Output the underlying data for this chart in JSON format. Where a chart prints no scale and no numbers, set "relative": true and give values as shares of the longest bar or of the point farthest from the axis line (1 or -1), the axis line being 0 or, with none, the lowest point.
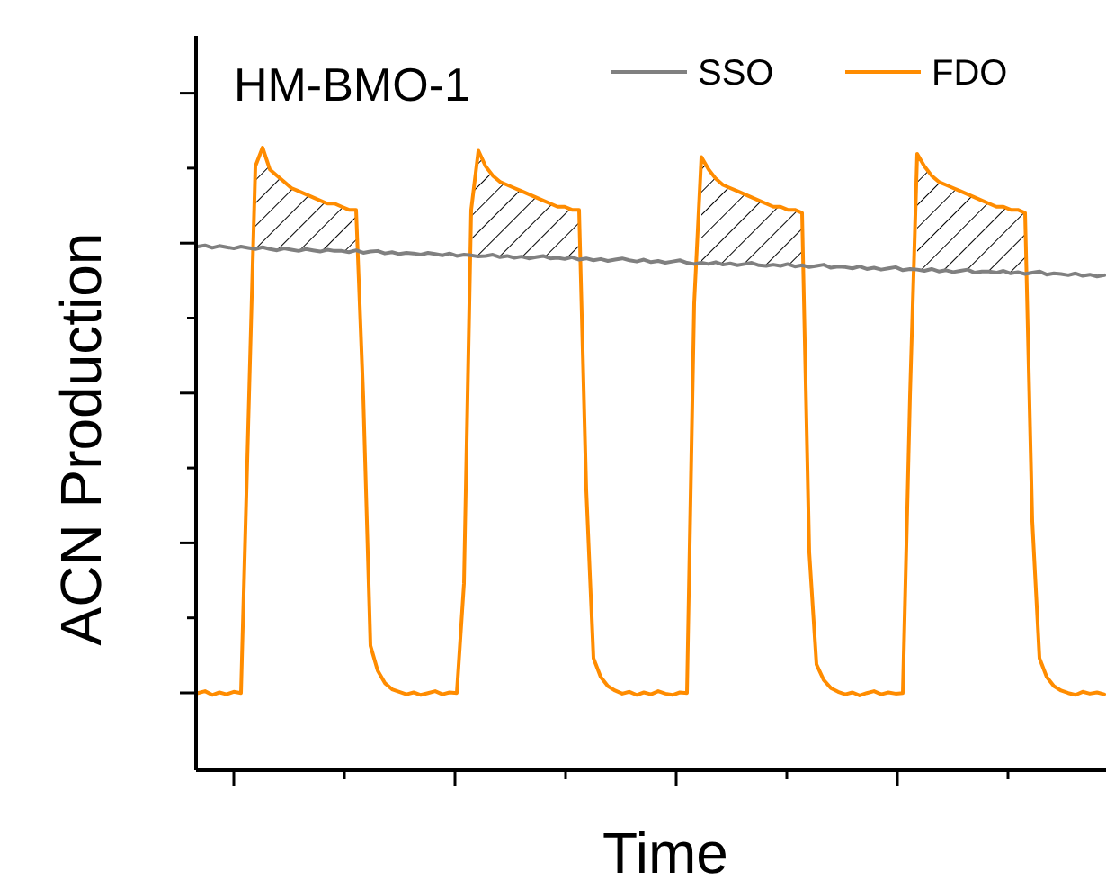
{
  "chart_data": {
    "type": "line",
    "title": "HM-BMO-1",
    "xlabel": "Time",
    "ylabel": "ACN Production",
    "relative": true,
    "legend": "top right",
    "categories": [
      null,
      null,
      null,
      null,
      null,
      null,
      null,
      null,
      null,
      null,
      null,
      null,
      null,
      null,
      null,
      null,
      null,
      null,
      null,
      null,
      null,
      null,
      null,
      null,
      null,
      null,
      null,
      null,
      null,
      null,
      null,
      null,
      null,
      null,
      null,
      null,
      null,
      null,
      null,
      null,
      null,
      null,
      null,
      null,
      null,
      null,
      null,
      null,
      null,
      null,
      null,
      null,
      null,
      null,
      null,
      null,
      null,
      null,
      null,
      null,
      null,
      null,
      null,
      null,
      null,
      null,
      null,
      null,
      null,
      null,
      null,
      null,
      null,
      null,
      null,
      null,
      null,
      null,
      null,
      null,
      null,
      null,
      null,
      null,
      null,
      null,
      null,
      null,
      null,
      null,
      null,
      null,
      null,
      null,
      null,
      null,
      null,
      null,
      null,
      null,
      null,
      null,
      null,
      null,
      null,
      null,
      null,
      null,
      null,
      null,
      null,
      null,
      null,
      null,
      null,
      null,
      null,
      null,
      null,
      null,
      null,
      null,
      null,
      null,
      null,
      null,
      null
    ],
    "series": [
      {
        "name": "SSO",
        "color": "#808080",
        "values": [
          0.841,
          0.843,
          0.839,
          0.842,
          0.84,
          0.838,
          0.841,
          0.839,
          0.837,
          0.84,
          0.837,
          0.835,
          0.838,
          0.836,
          0.834,
          0.837,
          0.835,
          0.833,
          0.836,
          0.834,
          0.834,
          0.832,
          0.835,
          0.831,
          0.833,
          0.834,
          0.83,
          0.832,
          0.829,
          0.831,
          0.83,
          0.828,
          0.831,
          0.829,
          0.827,
          0.83,
          0.826,
          0.828,
          0.827,
          0.825,
          0.826,
          0.828,
          0.824,
          0.826,
          0.823,
          0.825,
          0.822,
          0.824,
          0.826,
          0.822,
          0.823,
          0.821,
          0.824,
          0.82,
          0.822,
          0.819,
          0.821,
          0.818,
          0.82,
          0.822,
          0.819,
          0.817,
          0.82,
          0.816,
          0.818,
          0.815,
          0.817,
          0.819,
          0.815,
          0.813,
          0.815,
          0.813,
          0.816,
          0.812,
          0.814,
          0.811,
          0.813,
          0.815,
          0.811,
          0.81,
          0.812,
          0.81,
          0.813,
          0.809,
          0.811,
          0.808,
          0.81,
          0.812,
          0.807,
          0.809,
          0.808,
          0.806,
          0.809,
          0.805,
          0.807,
          0.804,
          0.806,
          0.808,
          0.803,
          0.805,
          0.804,
          0.802,
          0.805,
          0.801,
          0.803,
          0.8,
          0.802,
          0.804,
          0.799,
          0.801,
          0.801,
          0.799,
          0.802,
          0.798,
          0.8,
          0.797,
          0.799,
          0.801,
          0.796,
          0.798,
          0.797,
          0.795,
          0.798,
          0.794,
          0.796,
          0.793,
          0.795
        ]
      },
      {
        "name": "FDO",
        "color": "#ff8c00",
        "values": [
          0.124,
          0.127,
          0.121,
          0.125,
          0.122,
          0.126,
          0.124,
          0.55,
          0.97,
          1.0,
          0.965,
          0.955,
          0.945,
          0.935,
          0.93,
          0.925,
          0.92,
          0.915,
          0.91,
          0.91,
          0.905,
          0.9,
          0.9,
          0.6,
          0.2,
          0.16,
          0.14,
          0.13,
          0.126,
          0.122,
          0.125,
          0.121,
          0.124,
          0.127,
          0.122,
          0.125,
          0.124,
          0.3,
          0.9,
          0.995,
          0.97,
          0.955,
          0.945,
          0.94,
          0.935,
          0.93,
          0.925,
          0.92,
          0.915,
          0.91,
          0.905,
          0.905,
          0.9,
          0.9,
          0.45,
          0.18,
          0.15,
          0.135,
          0.128,
          0.123,
          0.126,
          0.121,
          0.125,
          0.122,
          0.127,
          0.123,
          0.121,
          0.125,
          0.124,
          0.75,
          0.985,
          0.965,
          0.95,
          0.94,
          0.935,
          0.93,
          0.925,
          0.92,
          0.915,
          0.91,
          0.905,
          0.905,
          0.9,
          0.9,
          0.895,
          0.35,
          0.17,
          0.145,
          0.132,
          0.126,
          0.122,
          0.125,
          0.12,
          0.124,
          0.127,
          0.122,
          0.125,
          0.123,
          0.124,
          0.6,
          0.99,
          0.97,
          0.955,
          0.945,
          0.94,
          0.935,
          0.93,
          0.925,
          0.92,
          0.915,
          0.91,
          0.905,
          0.905,
          0.9,
          0.9,
          0.895,
          0.4,
          0.18,
          0.15,
          0.135,
          0.128,
          0.124,
          0.121,
          0.126,
          0.123,
          0.125,
          0.122
        ]
      }
    ]
  }
}
